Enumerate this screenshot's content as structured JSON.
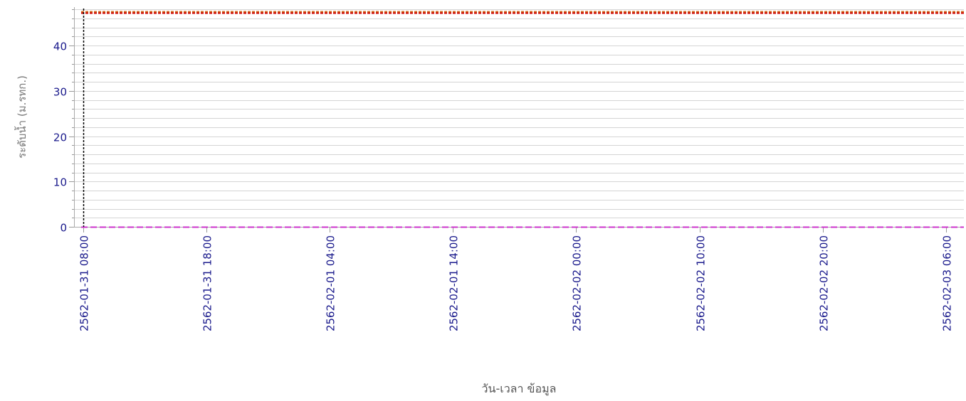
{
  "chart_data": {
    "type": "line",
    "ylabel": "ระดับน้ำ (ม.รทก.)",
    "xlabel": "วัน-เวลา ข้อมูล",
    "ylim": [
      0,
      48.5
    ],
    "x_tick_labels": [
      "2562-01-31 08:00",
      "2562-01-31 18:00",
      "2562-02-01 04:00",
      "2562-02-01 14:00",
      "2562-02-02 00:00",
      "2562-02-02 10:00",
      "2562-02-02 20:00",
      "2562-02-03 06:00"
    ],
    "x_range": [
      "2562-01-31 08:00",
      "2562-02-03 06:20"
    ],
    "y_ticks": [
      0,
      10,
      20,
      30,
      40
    ],
    "y_minor_step": 2,
    "grid": true,
    "reference_lines": [
      {
        "value": 47.6,
        "style": "dashed",
        "color": "#d2691e"
      },
      {
        "value": 47.3,
        "style": "dashed",
        "color": "#cc0000"
      },
      {
        "value": 0,
        "style": "dashed",
        "color": "#cc33cc"
      }
    ],
    "vertical_markers": [
      {
        "x": "2562-01-31 08:00",
        "style": "dashed",
        "color": "#000000"
      }
    ],
    "series": []
  }
}
